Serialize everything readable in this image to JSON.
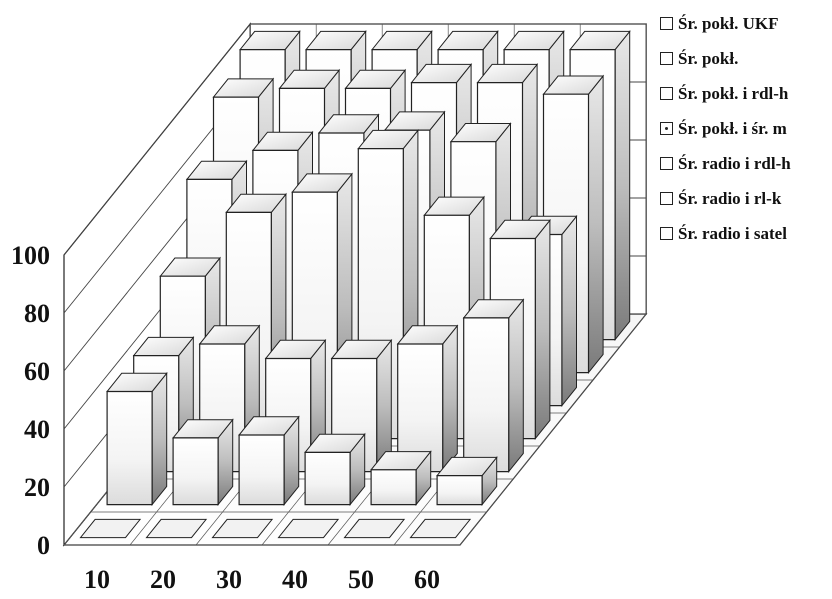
{
  "chart_data": {
    "type": "bar",
    "subtype": "3d-column-grid",
    "categories": [
      "10",
      "20",
      "30",
      "40",
      "50",
      "60"
    ],
    "y_ticks": [
      "0",
      "20",
      "40",
      "60",
      "80",
      "100"
    ],
    "ylim": [
      0,
      100
    ],
    "grid": true,
    "legend_position": "right",
    "series": [
      {
        "name": "Śr. pokł. UKF",
        "values": [
          0,
          0,
          0,
          0,
          0,
          0
        ]
      },
      {
        "name": "Śr. pokł.",
        "values": [
          39,
          23,
          24,
          18,
          12,
          10
        ]
      },
      {
        "name": "Śr. pokł. i rdl-h",
        "values": [
          40,
          44,
          39,
          39,
          44,
          53
        ]
      },
      {
        "name": "Śr. pokł. i śr. m",
        "values": [
          56,
          78,
          85,
          100,
          77,
          69
        ]
      },
      {
        "name": "Śr. radio i rdl-h",
        "values": [
          78,
          88,
          94,
          95,
          91,
          59
        ]
      },
      {
        "name": "Śr. radio i rl-k",
        "values": [
          95,
          98,
          98,
          100,
          100,
          96
        ]
      },
      {
        "name": "Śr. radio i satel",
        "values": [
          100,
          100,
          100,
          100,
          100,
          100
        ]
      }
    ]
  }
}
